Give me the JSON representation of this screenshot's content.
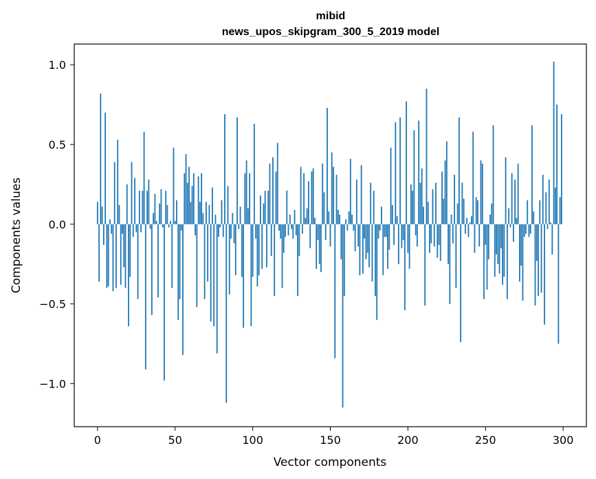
{
  "chart_data": {
    "type": "bar",
    "title": "mibid",
    "subtitle": "news_upos_skipgram_300_5_2019 model",
    "xlabel": "Vector components",
    "ylabel": "Components values",
    "xlim": [
      -15,
      315
    ],
    "ylim": [
      -1.27,
      1.13
    ],
    "x_ticks": [
      0,
      50,
      100,
      150,
      200,
      250,
      300
    ],
    "y_ticks": [
      -1.0,
      -0.5,
      0.0,
      0.5,
      1.0
    ],
    "x_tick_labels": [
      "0",
      "50",
      "100",
      "150",
      "200",
      "250",
      "300"
    ],
    "y_tick_labels": [
      "−1.0",
      "−0.5",
      "0.0",
      "0.5",
      "1.0"
    ],
    "grid": false,
    "bar_color": "#1f77b4",
    "values": [
      0.14,
      -0.36,
      0.82,
      0.11,
      -0.13,
      0.7,
      -0.4,
      -0.39,
      0.03,
      -0.06,
      -0.42,
      0.39,
      -0.4,
      0.53,
      0.12,
      -0.38,
      -0.06,
      -0.27,
      -0.4,
      0.25,
      -0.64,
      -0.33,
      0.39,
      -0.08,
      0.29,
      -0.05,
      -0.47,
      0.21,
      -0.05,
      0.21,
      0.58,
      -0.91,
      0.21,
      0.28,
      -0.03,
      -0.57,
      0.07,
      0.19,
      0.02,
      -0.46,
      0.13,
      0.22,
      -0.02,
      -0.98,
      0.21,
      0.12,
      -0.02,
      0.02,
      -0.4,
      0.48,
      0.02,
      0.15,
      -0.6,
      -0.47,
      -0.04,
      -0.82,
      0.32,
      0.44,
      0.26,
      0.36,
      0.14,
      0.24,
      0.32,
      -0.07,
      -0.52,
      0.3,
      0.14,
      0.32,
      0.07,
      -0.47,
      0.14,
      -0.36,
      0.12,
      -0.61,
      0.23,
      -0.64,
      0.06,
      -0.81,
      -0.08,
      -0.02,
      0.15,
      -0.08,
      0.69,
      -1.12,
      0.24,
      -0.44,
      -0.09,
      0.07,
      -0.12,
      -0.32,
      0.67,
      -0.03,
      0.11,
      -0.33,
      -0.65,
      0.32,
      0.4,
      0.1,
      0.32,
      -0.64,
      -0.33,
      0.63,
      -0.09,
      -0.39,
      -0.32,
      0.18,
      -0.28,
      0.13,
      0.21,
      -0.27,
      0.21,
      0.38,
      -0.2,
      0.42,
      -0.45,
      0.33,
      0.51,
      -0.04,
      -0.09,
      -0.4,
      -0.18,
      -0.08,
      0.21,
      -0.07,
      0.06,
      -0.03,
      -0.09,
      0.09,
      -0.07,
      -0.45,
      -0.2,
      0.36,
      -0.06,
      0.32,
      0.04,
      0.1,
      0.27,
      -0.15,
      0.33,
      0.35,
      0.04,
      -0.28,
      -0.1,
      -0.25,
      -0.3,
      0.38,
      0.2,
      -0.1,
      0.73,
      0.08,
      -0.14,
      0.45,
      0.36,
      -0.84,
      0.31,
      0.09,
      0.06,
      -0.22,
      -1.15,
      -0.45,
      0.03,
      -0.04,
      0.08,
      0.41,
      0.06,
      -0.04,
      -0.17,
      0.28,
      -0.14,
      -0.32,
      0.37,
      -0.31,
      -0.09,
      -0.22,
      -0.18,
      -0.27,
      0.26,
      -0.36,
      0.21,
      -0.45,
      -0.6,
      -0.09,
      -0.04,
      0.11,
      -0.32,
      -0.08,
      -0.08,
      -0.28,
      -0.16,
      0.48,
      0.12,
      -0.13,
      0.64,
      0.05,
      -0.25,
      0.67,
      -0.15,
      -0.1,
      -0.54,
      0.77,
      -0.18,
      -0.28,
      0.25,
      0.21,
      0.59,
      -0.07,
      -0.14,
      0.65,
      0.26,
      0.35,
      0.11,
      -0.51,
      0.85,
      0.14,
      -0.18,
      -0.12,
      0.22,
      -0.14,
      0.26,
      -0.21,
      -0.13,
      -0.23,
      0.33,
      0.16,
      0.4,
      0.52,
      -0.25,
      -0.5,
      0.06,
      -0.12,
      0.31,
      -0.4,
      0.13,
      0.67,
      -0.74,
      0.26,
      0.16,
      -0.06,
      0.04,
      -0.08,
      0.01,
      0.05,
      0.58,
      -0.18,
      0.17,
      0.15,
      -0.14,
      0.4,
      0.38,
      -0.47,
      -0.13,
      -0.41,
      -0.22,
      0.06,
      0.13,
      0.62,
      -0.33,
      -0.19,
      -0.25,
      -0.31,
      -0.15,
      -0.38,
      -0.33,
      0.42,
      -0.47,
      0.1,
      -0.02,
      0.32,
      -0.11,
      0.28,
      0.04,
      0.38,
      -0.36,
      -0.26,
      -0.48,
      -0.08,
      -0.06,
      0.15,
      -0.08,
      -0.06,
      0.62,
      0.08,
      -0.51,
      -0.23,
      -0.45,
      0.15,
      -0.43,
      0.31,
      -0.63,
      0.2,
      -0.03,
      0.28,
      0.01,
      -0.19,
      1.02,
      0.23,
      0.75,
      -0.75,
      0.17,
      0.69
    ]
  }
}
